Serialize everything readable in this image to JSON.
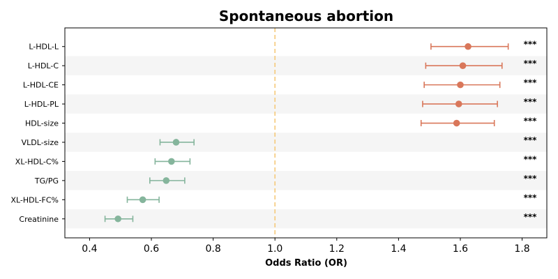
{
  "chart_data": {
    "type": "forest",
    "title": "Spontaneous abortion",
    "xlabel": "Odds Ratio (OR)",
    "xlim": [
      0.32,
      1.88
    ],
    "xticks": [
      "0.4",
      "0.6",
      "0.8",
      "1.0",
      "1.2",
      "1.4",
      "1.6",
      "1.8"
    ],
    "reference_line": 1.0,
    "reference_color": "#f5c97a",
    "colors": {
      "risk": "#d9775a",
      "protective": "#85b59c",
      "band": "#f5f5f5"
    },
    "rows": [
      {
        "label": "L-HDL-L",
        "or": 1.625,
        "lo": 1.505,
        "hi": 1.755,
        "sig": "***",
        "group": "risk"
      },
      {
        "label": "L-HDL-C",
        "or": 1.608,
        "lo": 1.488,
        "hi": 1.735,
        "sig": "***",
        "group": "risk"
      },
      {
        "label": "L-HDL-CE",
        "or": 1.6,
        "lo": 1.483,
        "hi": 1.728,
        "sig": "***",
        "group": "risk"
      },
      {
        "label": "L-HDL-PL",
        "or": 1.595,
        "lo": 1.478,
        "hi": 1.72,
        "sig": "***",
        "group": "risk"
      },
      {
        "label": "HDL-size",
        "or": 1.588,
        "lo": 1.473,
        "hi": 1.71,
        "sig": "***",
        "group": "risk"
      },
      {
        "label": "VLDL-size",
        "or": 0.68,
        "lo": 0.628,
        "hi": 0.738,
        "sig": "***",
        "group": "protective"
      },
      {
        "label": "XL-HDL-C%",
        "or": 0.665,
        "lo": 0.612,
        "hi": 0.725,
        "sig": "***",
        "group": "protective"
      },
      {
        "label": "TG/PG",
        "or": 0.648,
        "lo": 0.595,
        "hi": 0.708,
        "sig": "***",
        "group": "protective"
      },
      {
        "label": "XL-HDL-FC%",
        "or": 0.572,
        "lo": 0.522,
        "hi": 0.625,
        "sig": "***",
        "group": "protective"
      },
      {
        "label": "Creatinine",
        "or": 0.492,
        "lo": 0.45,
        "hi": 0.54,
        "sig": "***",
        "group": "protective"
      }
    ]
  }
}
